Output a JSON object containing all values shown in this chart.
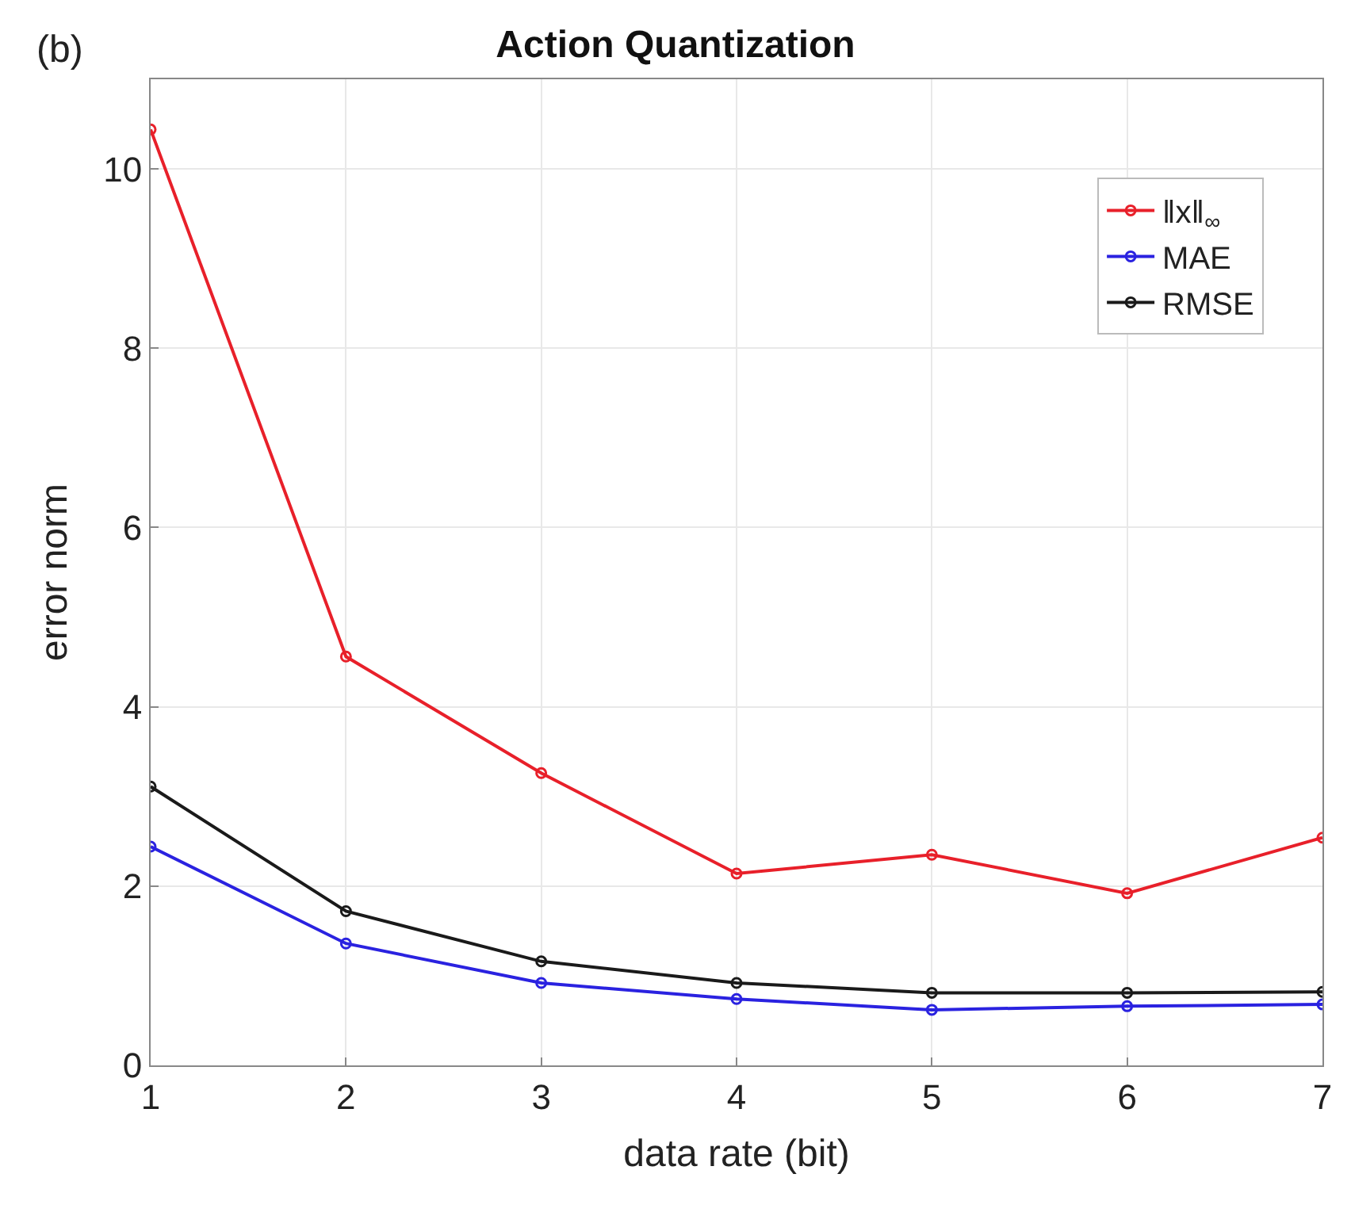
{
  "chart_data": {
    "type": "line",
    "title": "Action Quantization",
    "xlabel": "data rate (bit)",
    "ylabel": "error norm",
    "annotations": [
      "(b)"
    ],
    "x": [
      1,
      2,
      3,
      4,
      5,
      6,
      7
    ],
    "series": [
      {
        "name": "‖x‖$_{∞}$",
        "color": "#e8202a",
        "values": [
          10.44,
          4.56,
          3.26,
          2.14,
          2.35,
          1.92,
          2.54
        ]
      },
      {
        "name": "MAE",
        "color": "#2a22e0",
        "values": [
          2.44,
          1.36,
          0.92,
          0.74,
          0.62,
          0.66,
          0.68
        ]
      },
      {
        "name": "RMSE",
        "color": "#1a1a1a",
        "values": [
          3.11,
          1.72,
          1.16,
          0.92,
          0.81,
          0.81,
          0.82
        ]
      }
    ],
    "xlim": [
      1,
      7
    ],
    "xticks": [
      1,
      2,
      3,
      4,
      5,
      6,
      7
    ],
    "ylim": [
      0,
      11
    ],
    "yticks": [
      0,
      2,
      4,
      6,
      8,
      10
    ],
    "grid": true,
    "legend": "top right",
    "marker": "circle",
    "line_style": "solid"
  }
}
